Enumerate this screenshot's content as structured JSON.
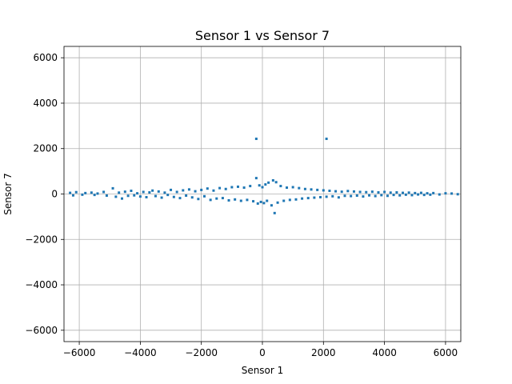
{
  "chart_data": {
    "type": "scatter",
    "title": "Sensor 1 vs Sensor 7",
    "xlabel": "Sensor 1",
    "ylabel": "Sensor 7",
    "xlim": [
      -6500,
      6500
    ],
    "ylim": [
      -6500,
      6500
    ],
    "xticks": [
      -6000,
      -4000,
      -2000,
      0,
      2000,
      4000,
      6000
    ],
    "yticks": [
      -6000,
      -4000,
      -2000,
      0,
      2000,
      4000,
      6000
    ],
    "grid": true,
    "color": "#1f77b4",
    "series": [
      {
        "points": [
          [
            -6300,
            50
          ],
          [
            -6200,
            -60
          ],
          [
            -6100,
            80
          ],
          [
            -5900,
            -30
          ],
          [
            -5800,
            40
          ],
          [
            -5600,
            60
          ],
          [
            -5500,
            -40
          ],
          [
            -5400,
            20
          ],
          [
            -5200,
            90
          ],
          [
            -5100,
            -70
          ],
          [
            -4900,
            250
          ],
          [
            -4800,
            -120
          ],
          [
            -4700,
            60
          ],
          [
            -4600,
            -200
          ],
          [
            -4500,
            100
          ],
          [
            -4400,
            -80
          ],
          [
            -4300,
            140
          ],
          [
            -4200,
            -60
          ],
          [
            -4100,
            30
          ],
          [
            -4000,
            -110
          ],
          [
            -3900,
            90
          ],
          [
            -3800,
            -140
          ],
          [
            -3700,
            70
          ],
          [
            -3600,
            150
          ],
          [
            -3500,
            -90
          ],
          [
            -3400,
            110
          ],
          [
            -3300,
            -160
          ],
          [
            -3200,
            60
          ],
          [
            -3100,
            -40
          ],
          [
            -3000,
            180
          ],
          [
            -2900,
            -130
          ],
          [
            -2800,
            90
          ],
          [
            -2700,
            -180
          ],
          [
            -2600,
            160
          ],
          [
            -2500,
            -70
          ],
          [
            -2400,
            200
          ],
          [
            -2300,
            -150
          ],
          [
            -2200,
            120
          ],
          [
            -2100,
            -220
          ],
          [
            -2000,
            180
          ],
          [
            -1900,
            -100
          ],
          [
            -1800,
            240
          ],
          [
            -1700,
            -260
          ],
          [
            -1600,
            150
          ],
          [
            -1500,
            -200
          ],
          [
            -1400,
            260
          ],
          [
            -1300,
            -180
          ],
          [
            -1200,
            220
          ],
          [
            -1100,
            -280
          ],
          [
            -1000,
            300
          ],
          [
            -900,
            -240
          ],
          [
            -800,
            320
          ],
          [
            -700,
            -300
          ],
          [
            -600,
            280
          ],
          [
            -500,
            -260
          ],
          [
            -400,
            350
          ],
          [
            -300,
            -320
          ],
          [
            -200,
            700
          ],
          [
            -150,
            -420
          ],
          [
            -100,
            380
          ],
          [
            -50,
            -350
          ],
          [
            0,
            300
          ],
          [
            50,
            -400
          ],
          [
            100,
            420
          ],
          [
            150,
            -300
          ],
          [
            200,
            500
          ],
          [
            300,
            -500
          ],
          [
            350,
            600
          ],
          [
            400,
            -840
          ],
          [
            450,
            520
          ],
          [
            500,
            -380
          ],
          [
            600,
            350
          ],
          [
            700,
            -300
          ],
          [
            800,
            280
          ],
          [
            900,
            -260
          ],
          [
            1000,
            300
          ],
          [
            1100,
            -240
          ],
          [
            1200,
            260
          ],
          [
            1300,
            -200
          ],
          [
            1400,
            220
          ],
          [
            1500,
            -180
          ],
          [
            1600,
            200
          ],
          [
            1700,
            -160
          ],
          [
            1800,
            180
          ],
          [
            1900,
            -140
          ],
          [
            2000,
            160
          ],
          [
            2100,
            -120
          ],
          [
            2200,
            140
          ],
          [
            2300,
            -100
          ],
          [
            2400,
            120
          ],
          [
            2500,
            -150
          ],
          [
            2600,
            100
          ],
          [
            2700,
            -80
          ],
          [
            2800,
            130
          ],
          [
            2900,
            -90
          ],
          [
            3000,
            110
          ],
          [
            3100,
            -70
          ],
          [
            3200,
            90
          ],
          [
            3300,
            -110
          ],
          [
            3400,
            80
          ],
          [
            3500,
            -60
          ],
          [
            3600,
            100
          ],
          [
            3700,
            -90
          ],
          [
            3800,
            70
          ],
          [
            3900,
            -50
          ],
          [
            4000,
            90
          ],
          [
            4100,
            -80
          ],
          [
            4200,
            60
          ],
          [
            4300,
            -40
          ],
          [
            4400,
            70
          ],
          [
            4500,
            -60
          ],
          [
            4600,
            50
          ],
          [
            4700,
            -30
          ],
          [
            4800,
            60
          ],
          [
            4900,
            -50
          ],
          [
            5000,
            40
          ],
          [
            5100,
            -20
          ],
          [
            5200,
            50
          ],
          [
            5300,
            -40
          ],
          [
            5400,
            30
          ],
          [
            5500,
            -30
          ],
          [
            5600,
            40
          ],
          [
            5800,
            -20
          ],
          [
            6000,
            30
          ],
          [
            6200,
            20
          ],
          [
            6400,
            -10
          ],
          [
            -200,
            2430
          ],
          [
            2100,
            2430
          ]
        ]
      }
    ]
  }
}
